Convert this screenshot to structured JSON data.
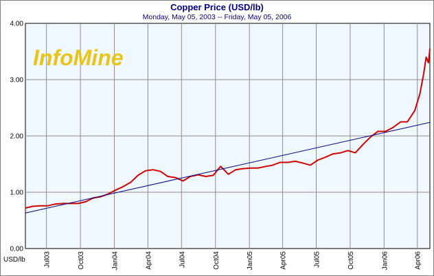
{
  "chart_data": {
    "type": "line",
    "title": "Copper Price (USD/lb)",
    "subtitle": "Monday, May 05, 2003  --  Friday, May 05, 2006",
    "ylabel": "USD/lb",
    "watermark": "InfoMine",
    "ylim": [
      0,
      4
    ],
    "xlim": [
      "2003-05-05",
      "2006-05-05"
    ],
    "yticks": [
      "0.00",
      "1.00",
      "2.00",
      "3.00",
      "4.00"
    ],
    "xticks": [
      {
        "label": "Jul03",
        "date": "2003-07-01"
      },
      {
        "label": "Oct03",
        "date": "2003-10-01"
      },
      {
        "label": "Jan04",
        "date": "2004-01-01"
      },
      {
        "label": "Apr04",
        "date": "2004-04-01"
      },
      {
        "label": "Jul04",
        "date": "2004-07-01"
      },
      {
        "label": "Oct04",
        "date": "2004-10-01"
      },
      {
        "label": "Jan05",
        "date": "2005-01-01"
      },
      {
        "label": "Apr05",
        "date": "2005-04-01"
      },
      {
        "label": "Jul05",
        "date": "2005-07-01"
      },
      {
        "label": "Oct05",
        "date": "2005-10-01"
      },
      {
        "label": "Jan06",
        "date": "2006-01-01"
      },
      {
        "label": "Apr06",
        "date": "2006-04-01"
      }
    ],
    "grid": true,
    "series": [
      {
        "color": "#cc0000",
        "points": [
          [
            "2003-05-05",
            0.72
          ],
          [
            "2003-05-25",
            0.75
          ],
          [
            "2003-06-15",
            0.76
          ],
          [
            "2003-07-05",
            0.76
          ],
          [
            "2003-07-25",
            0.79
          ],
          [
            "2003-08-15",
            0.8
          ],
          [
            "2003-09-05",
            0.8
          ],
          [
            "2003-09-25",
            0.8
          ],
          [
            "2003-10-15",
            0.83
          ],
          [
            "2003-11-05",
            0.9
          ],
          [
            "2003-11-25",
            0.92
          ],
          [
            "2003-12-15",
            0.97
          ],
          [
            "2004-01-05",
            1.04
          ],
          [
            "2004-01-25",
            1.1
          ],
          [
            "2004-02-15",
            1.18
          ],
          [
            "2004-03-05",
            1.3
          ],
          [
            "2004-03-25",
            1.38
          ],
          [
            "2004-04-15",
            1.4
          ],
          [
            "2004-05-05",
            1.37
          ],
          [
            "2004-05-25",
            1.28
          ],
          [
            "2004-06-15",
            1.26
          ],
          [
            "2004-07-05",
            1.2
          ],
          [
            "2004-07-25",
            1.28
          ],
          [
            "2004-08-15",
            1.31
          ],
          [
            "2004-09-05",
            1.28
          ],
          [
            "2004-09-25",
            1.3
          ],
          [
            "2004-10-15",
            1.46
          ],
          [
            "2004-11-05",
            1.32
          ],
          [
            "2004-11-25",
            1.4
          ],
          [
            "2004-12-15",
            1.42
          ],
          [
            "2005-01-05",
            1.43
          ],
          [
            "2005-01-25",
            1.43
          ],
          [
            "2005-02-15",
            1.46
          ],
          [
            "2005-03-05",
            1.48
          ],
          [
            "2005-03-25",
            1.53
          ],
          [
            "2005-04-15",
            1.53
          ],
          [
            "2005-05-05",
            1.55
          ],
          [
            "2005-05-25",
            1.52
          ],
          [
            "2005-06-15",
            1.48
          ],
          [
            "2005-07-05",
            1.57
          ],
          [
            "2005-07-25",
            1.62
          ],
          [
            "2005-08-15",
            1.68
          ],
          [
            "2005-09-05",
            1.7
          ],
          [
            "2005-09-25",
            1.74
          ],
          [
            "2005-10-15",
            1.7
          ],
          [
            "2005-11-05",
            1.85
          ],
          [
            "2005-11-25",
            1.98
          ],
          [
            "2005-12-15",
            2.08
          ],
          [
            "2006-01-05",
            2.08
          ],
          [
            "2006-01-25",
            2.15
          ],
          [
            "2006-02-15",
            2.25
          ],
          [
            "2006-03-05",
            2.25
          ],
          [
            "2006-03-25",
            2.45
          ],
          [
            "2006-04-08",
            2.75
          ],
          [
            "2006-04-18",
            3.1
          ],
          [
            "2006-04-25",
            3.4
          ],
          [
            "2006-05-01",
            3.3
          ],
          [
            "2006-05-05",
            3.55
          ]
        ]
      },
      {
        "color": "#000080",
        "points": [
          [
            "2003-05-05",
            0.63
          ],
          [
            "2006-05-05",
            2.24
          ]
        ]
      }
    ]
  }
}
